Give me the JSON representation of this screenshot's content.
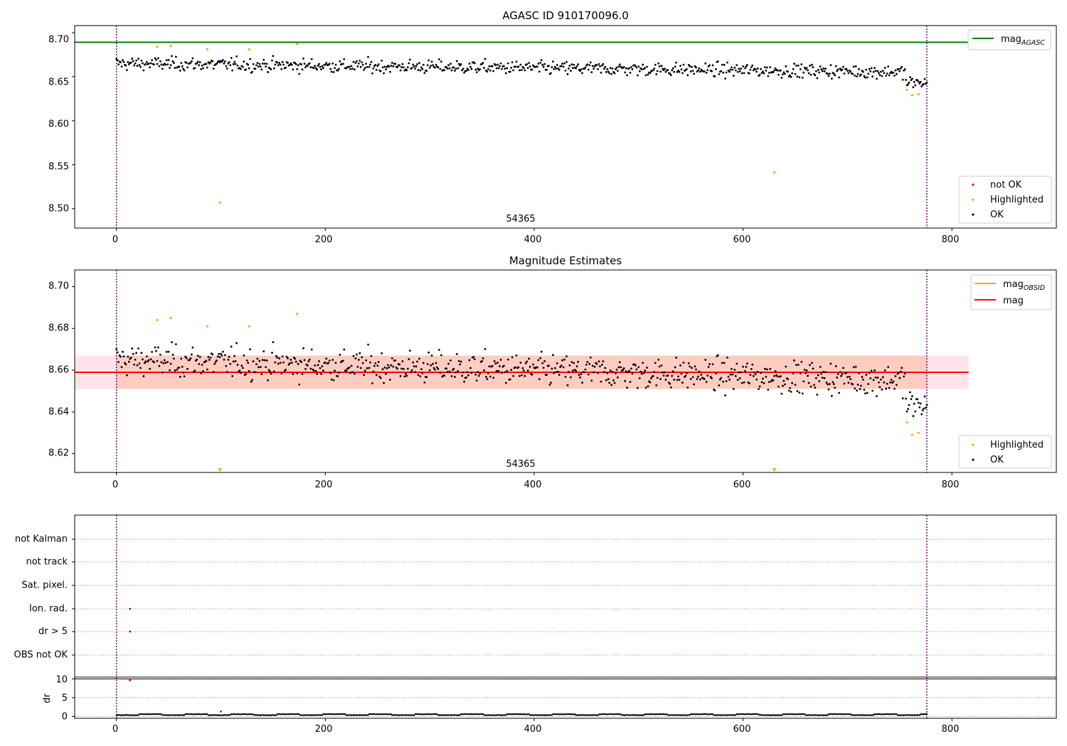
{
  "chart_data": [
    {
      "type": "scatter",
      "title": "AGASC ID 910170096.0",
      "xlabel": "",
      "ylabel": "",
      "xlim": [
        -40,
        900
      ],
      "ylim": [
        8.478,
        8.708
      ],
      "xticks": [
        "0",
        "200",
        "400",
        "600",
        "800"
      ],
      "yticks": [
        "8.50",
        "8.55",
        "8.60",
        "8.65",
        "8.70"
      ],
      "obsid_label": "54365",
      "obsid_label_x": 390,
      "vlines": [
        0,
        776
      ],
      "hlines": [
        {
          "name": "mag",
          "subscript": "AGASC",
          "y": 8.689,
          "color": "#008000"
        }
      ],
      "legend_upper": [
        {
          "label": "mag",
          "subscript": "AGASC",
          "color": "#008000",
          "kind": "line"
        }
      ],
      "legend_lower": [
        {
          "label": "not OK",
          "color": "#ff0000",
          "kind": "point"
        },
        {
          "label": "Highlighted",
          "color": "#ffa500",
          "kind": "point"
        },
        {
          "label": "OK",
          "color": "#000000",
          "kind": "point"
        }
      ],
      "series": [
        {
          "name": "Highlighted",
          "color": "#ffa500",
          "points": [
            [
              39,
              8.684
            ],
            [
              52,
              8.685
            ],
            [
              87,
              8.681
            ],
            [
              99,
              8.507
            ],
            [
              127,
              8.681
            ],
            [
              173,
              8.687
            ],
            [
              630,
              8.541
            ],
            [
              757,
              8.635
            ],
            [
              762,
              8.629
            ],
            [
              768,
              8.63
            ]
          ]
        }
      ],
      "ok_series": {
        "name": "OK",
        "color": "#000000",
        "x_start": 0,
        "x_end": 776,
        "center": 8.659,
        "spread": 0.0075
      }
    },
    {
      "type": "scatter",
      "title": "Magnitude Estimates",
      "xlabel": "",
      "ylabel": "",
      "xlim": [
        -40,
        900
      ],
      "ylim": [
        8.611,
        8.708
      ],
      "xticks": [
        "0",
        "200",
        "400",
        "600",
        "800"
      ],
      "yticks": [
        "8.62",
        "8.64",
        "8.66",
        "8.68",
        "8.70"
      ],
      "ytick_values": [
        8.62,
        8.64,
        8.66,
        8.68,
        8.7
      ],
      "obsid_label": "54365",
      "obsid_label_x": 390,
      "vlines": [
        0,
        776
      ],
      "band_outer": {
        "xlim": [
          -40,
          816
        ],
        "ylim": [
          8.651,
          8.667
        ],
        "color": "#ffc0cb"
      },
      "band_inner": {
        "xlim": [
          0,
          776
        ],
        "ylim": [
          8.651,
          8.667
        ],
        "color": "#ffa07a"
      },
      "mean_line": {
        "y": 8.659,
        "color": "#ff0000",
        "xlim": [
          -40,
          816
        ]
      },
      "legend_upper": [
        {
          "label": "mag",
          "subscript": "OBSID",
          "color": "#ffa500",
          "kind": "line"
        },
        {
          "label": "mag",
          "color": "#ff0000",
          "kind": "line"
        }
      ],
      "legend_lower": [
        {
          "label": "Highlighted",
          "color": "#ffa500",
          "kind": "point"
        },
        {
          "label": "OK",
          "color": "#000000",
          "kind": "point"
        }
      ],
      "series": [
        {
          "name": "Highlighted",
          "color": "#ffa500",
          "points": [
            [
              39,
              8.684
            ],
            [
              52,
              8.685
            ],
            [
              87,
              8.681
            ],
            [
              127,
              8.681
            ],
            [
              173,
              8.687
            ],
            [
              757,
              8.635
            ],
            [
              762,
              8.629
            ],
            [
              768,
              8.63
            ]
          ]
        }
      ],
      "offscale_markers": [
        99,
        630
      ]
    },
    {
      "type": "scatter",
      "title": "",
      "xlabel": "",
      "ylabel": "",
      "xlim": [
        -40,
        900
      ],
      "xticks": [
        "0",
        "200",
        "400",
        "600",
        "800"
      ],
      "vlines": [
        0,
        776
      ],
      "flag_rows": [
        "not Kalman",
        "not track",
        "Sat. pixel.",
        "Ion. rad.",
        "dr > 5",
        "OBS not OK"
      ],
      "flag_points": [
        {
          "row": "Ion. rad.",
          "x": 13
        },
        {
          "row": "dr > 5",
          "x": 13
        }
      ]
    },
    {
      "type": "scatter",
      "title": "",
      "xlabel": "",
      "ylabel": "dr",
      "xlim": [
        -40,
        900
      ],
      "ylim": [
        -0.5,
        10.5
      ],
      "yticks": [
        "0",
        "5",
        "10"
      ],
      "hlines": [
        {
          "y": 10,
          "color": "#000000"
        }
      ],
      "red_points": [
        [
          13,
          9.7
        ]
      ],
      "dr_series": {
        "x_start": 0,
        "x_end": 776,
        "baseline": 0.3,
        "spread": 0.25,
        "outliers": [
          [
            100,
            1.3
          ]
        ]
      }
    }
  ]
}
